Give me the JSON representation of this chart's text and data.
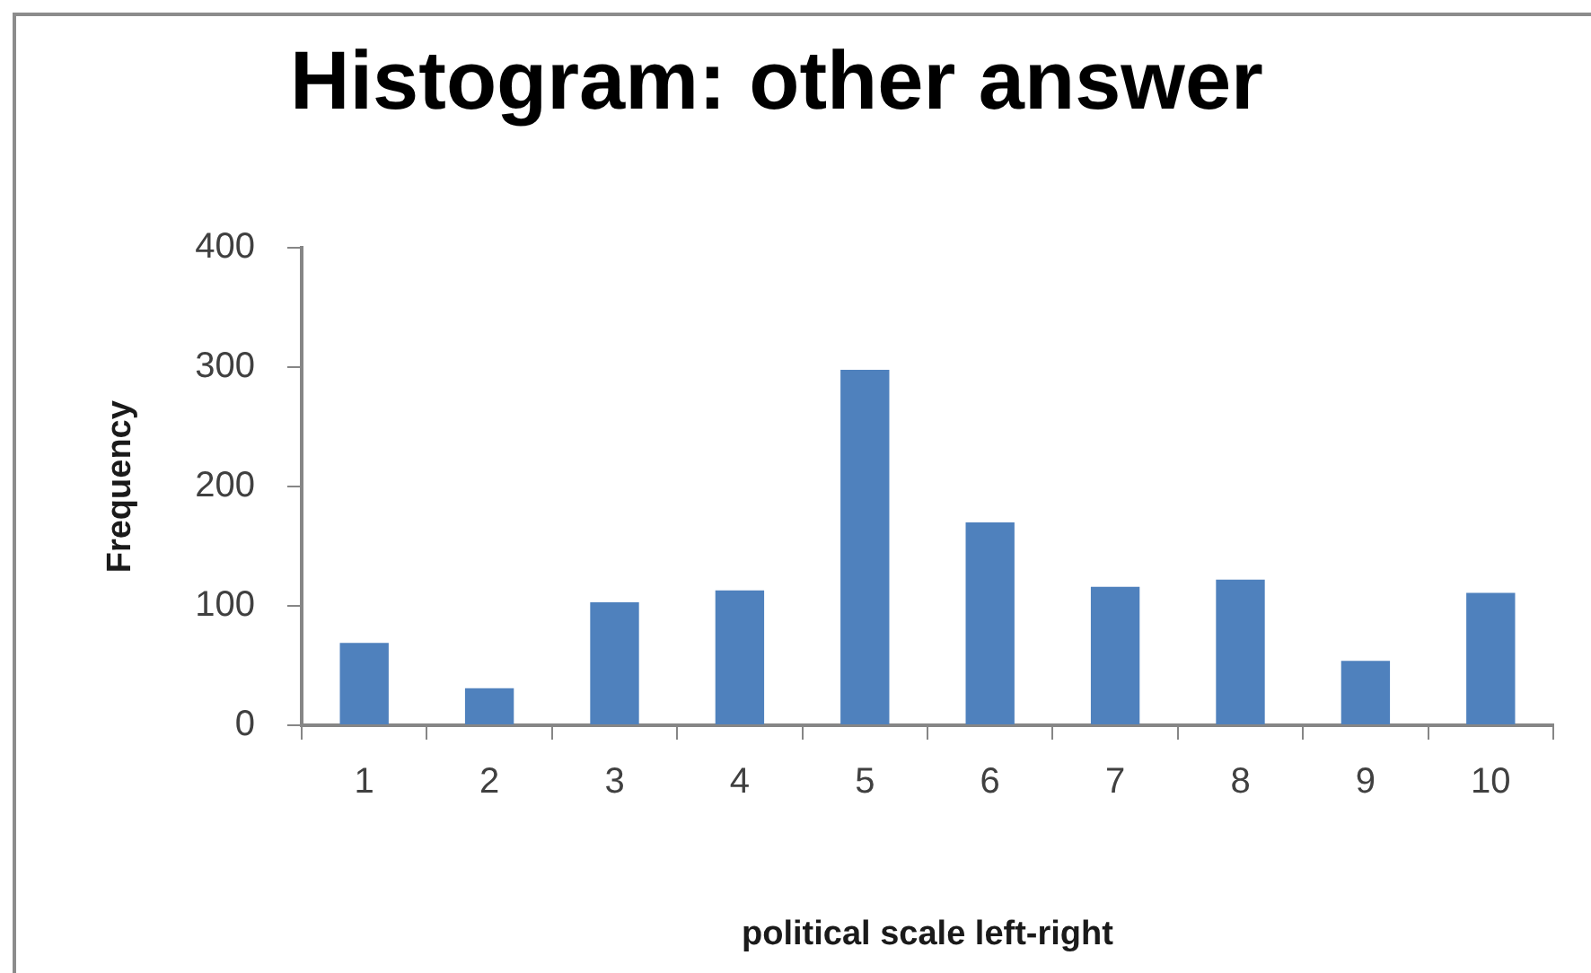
{
  "chart_data": {
    "type": "bar",
    "title": "Histogram: other answer",
    "xlabel": "political scale left-right",
    "ylabel": "Frequency",
    "categories": [
      "1",
      "2",
      "3",
      "4",
      "5",
      "6",
      "7",
      "8",
      "9",
      "10"
    ],
    "values": [
      69,
      31,
      103,
      113,
      298,
      170,
      116,
      122,
      54,
      111
    ],
    "color": "#4f81bd",
    "ylim": [
      0,
      400
    ],
    "yticks": [
      0,
      100,
      200,
      300,
      400
    ],
    "grid": false,
    "legend": false
  }
}
